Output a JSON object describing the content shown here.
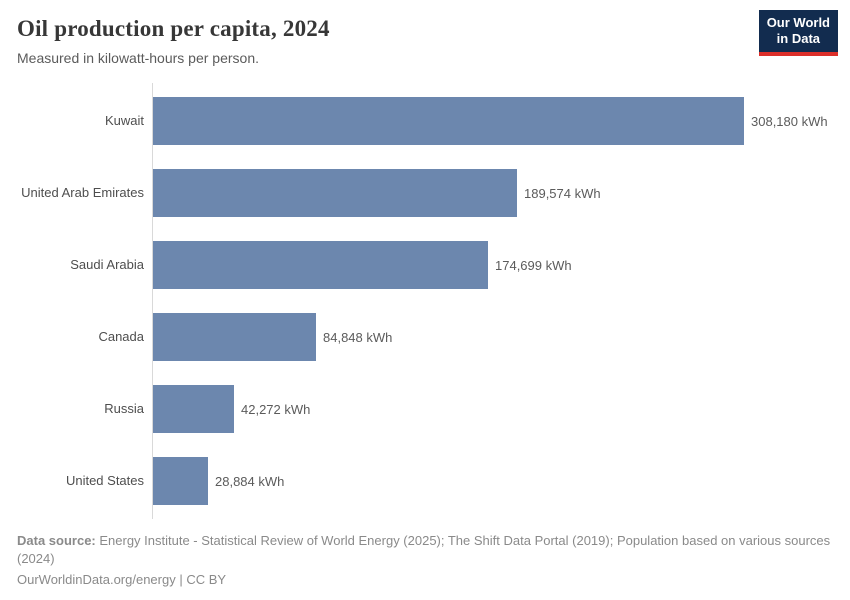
{
  "header": {
    "title": "Oil production per capita, 2024",
    "subtitle": "Measured in kilowatt-hours per person."
  },
  "logo": {
    "line1": "Our World",
    "line2": "in Data",
    "background_color": "#122c4f",
    "accent_color": "#dc2f2a"
  },
  "chart_data": {
    "type": "bar",
    "orientation": "horizontal",
    "title": "Oil production per capita, 2024",
    "subtitle": "Measured in kilowatt-hours per person.",
    "unit": "kWh",
    "categories": [
      "Kuwait",
      "United Arab Emirates",
      "Saudi Arabia",
      "Canada",
      "Russia",
      "United States"
    ],
    "values": [
      308180,
      189574,
      174699,
      84848,
      42272,
      28884
    ],
    "value_labels": [
      "308,180 kWh",
      "189,574 kWh",
      "174,699 kWh",
      "84,848 kWh",
      "42,272 kWh",
      "28,884 kWh"
    ],
    "xlim": [
      0,
      308180
    ],
    "grid": false,
    "legend": false,
    "bar_color": "#6c87ae",
    "axis_color": "#d9d9d9"
  },
  "footer": {
    "datasource_label": "Data source:",
    "datasource_text": " Energy Institute - Statistical Review of World Energy (2025); The Shift Data Portal (2019); Population based on various sources (2024)",
    "license_line": "OurWorldinData.org/energy | CC BY"
  }
}
